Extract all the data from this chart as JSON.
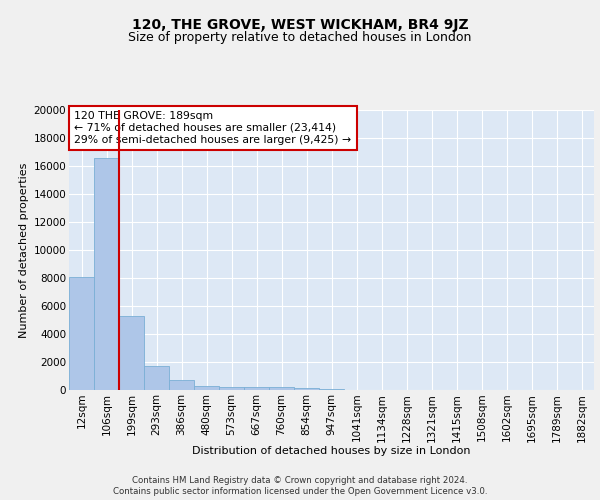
{
  "title": "120, THE GROVE, WEST WICKHAM, BR4 9JZ",
  "subtitle": "Size of property relative to detached houses in London",
  "xlabel": "Distribution of detached houses by size in London",
  "ylabel": "Number of detached properties",
  "footer_line1": "Contains HM Land Registry data © Crown copyright and database right 2024.",
  "footer_line2": "Contains public sector information licensed under the Open Government Licence v3.0.",
  "bin_labels": [
    "12sqm",
    "106sqm",
    "199sqm",
    "293sqm",
    "386sqm",
    "480sqm",
    "573sqm",
    "667sqm",
    "760sqm",
    "854sqm",
    "947sqm",
    "1041sqm",
    "1134sqm",
    "1228sqm",
    "1321sqm",
    "1415sqm",
    "1508sqm",
    "1602sqm",
    "1695sqm",
    "1789sqm",
    "1882sqm"
  ],
  "bar_heights": [
    8100,
    16600,
    5300,
    1750,
    750,
    320,
    240,
    200,
    180,
    150,
    100,
    0,
    0,
    0,
    0,
    0,
    0,
    0,
    0,
    0,
    0
  ],
  "bar_color": "#aec6e8",
  "bar_edge_color": "#7aafd6",
  "vline_color": "#cc0000",
  "annotation_text": "120 THE GROVE: 189sqm\n← 71% of detached houses are smaller (23,414)\n29% of semi-detached houses are larger (9,425) →",
  "annotation_box_color": "#ffffff",
  "annotation_box_edgecolor": "#cc0000",
  "ylim": [
    0,
    20000
  ],
  "yticks": [
    0,
    2000,
    4000,
    6000,
    8000,
    10000,
    12000,
    14000,
    16000,
    18000,
    20000
  ],
  "plot_bg_color": "#dde8f5",
  "fig_bg_color": "#f0f0f0",
  "title_fontsize": 10,
  "subtitle_fontsize": 9,
  "axis_label_fontsize": 8,
  "tick_fontsize": 7.5,
  "footer_fontsize": 6.2,
  "annotation_fontsize": 7.8
}
